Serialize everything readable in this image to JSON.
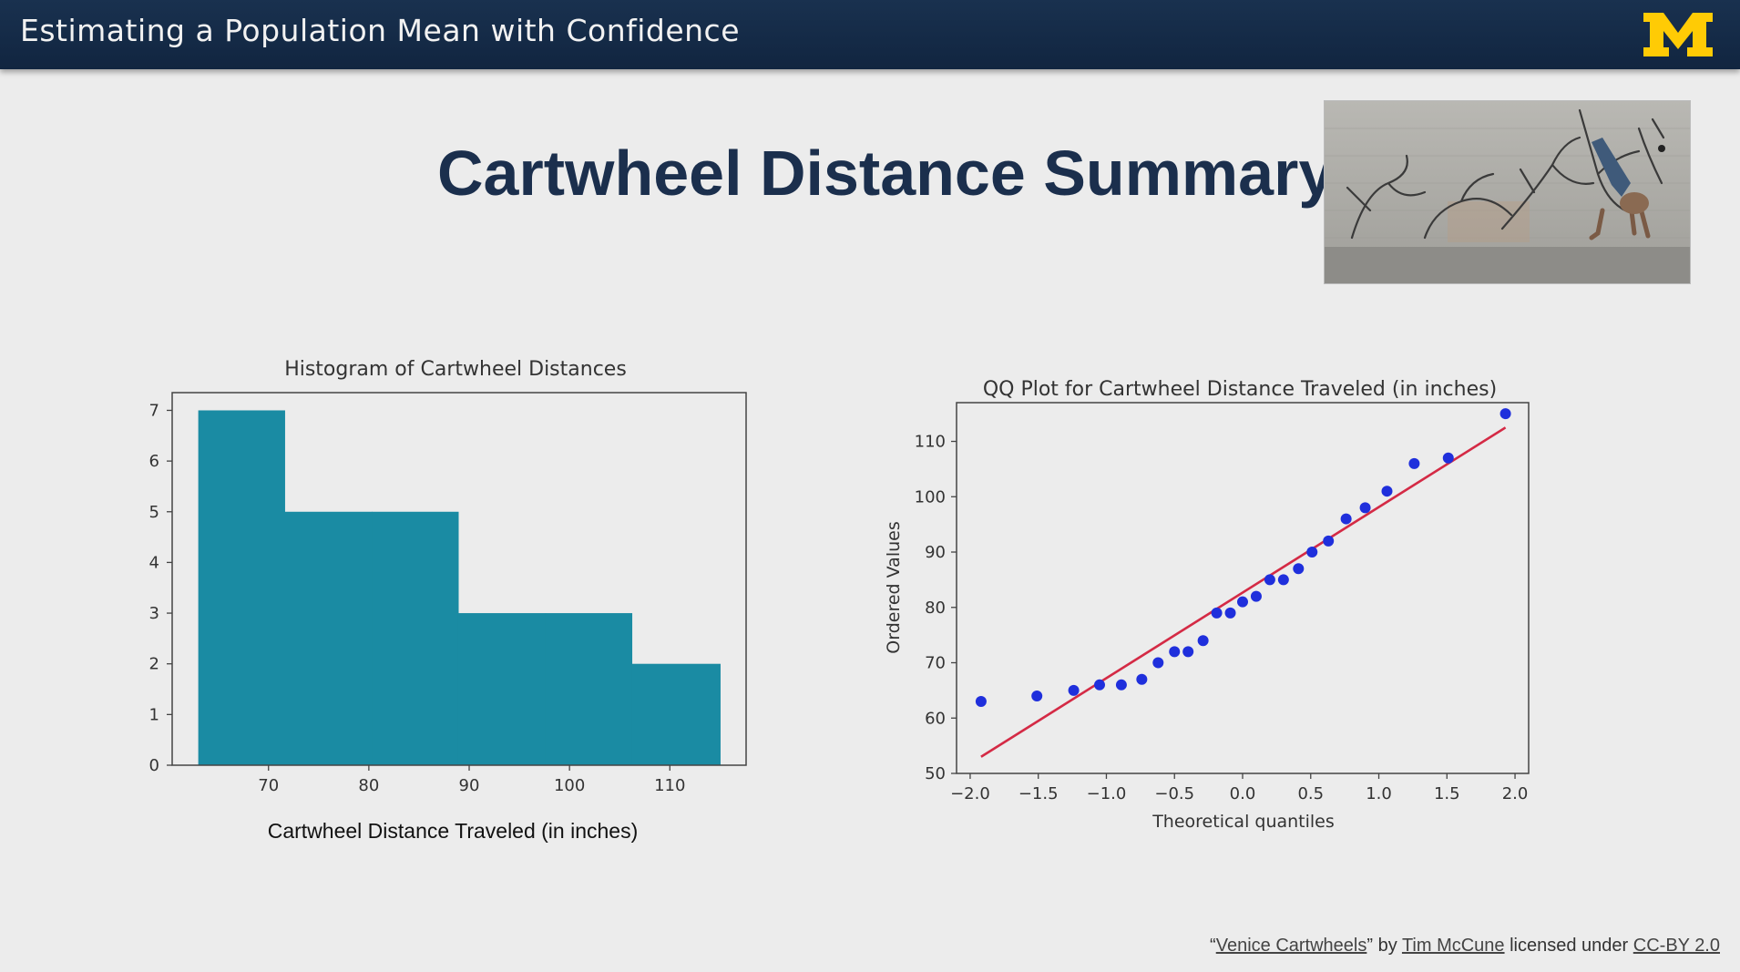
{
  "header": {
    "title": "Estimating a Population Mean with Confidence",
    "logo_letter": "M",
    "logo_color": "#ffcb05"
  },
  "slide": {
    "title": "Cartwheel Distance Summary"
  },
  "credit": {
    "open_quote": "“",
    "work_title": "Venice Cartwheels",
    "close_quote": "”",
    "by": "by",
    "author": "Tim McCune",
    "licensed": "licensed under",
    "license": "CC-BY 2.0"
  },
  "chart_data": [
    {
      "type": "bar",
      "title": "Histogram of Cartwheel Distances",
      "xlabel": "Cartwheel Distance Traveled (in inches)",
      "ylabel": "",
      "bins": [
        {
          "start": 63,
          "end": 71.6,
          "count": 7
        },
        {
          "start": 71.6,
          "end": 80.3,
          "count": 5
        },
        {
          "start": 80.3,
          "end": 88.9,
          "count": 5
        },
        {
          "start": 88.9,
          "end": 97.6,
          "count": 3
        },
        {
          "start": 97.6,
          "end": 106.2,
          "count": 3
        },
        {
          "start": 106.2,
          "end": 115,
          "count": 2
        }
      ],
      "xlim": [
        60.4,
        117.6
      ],
      "ylim": [
        0,
        7.35
      ],
      "xticks": [
        70,
        80,
        90,
        100,
        110
      ],
      "yticks": [
        0,
        1,
        2,
        3,
        4,
        5,
        6,
        7
      ],
      "bar_color": "#1a8ba3",
      "grid": false
    },
    {
      "type": "scatter",
      "title": "QQ Plot for Cartwheel Distance Traveled (in inches)",
      "xlabel": "Theoretical quantiles",
      "ylabel": "Ordered Values",
      "xlim": [
        -2.1,
        2.1
      ],
      "ylim": [
        50,
        117
      ],
      "xticks": [
        -2.0,
        -1.5,
        -1.0,
        -0.5,
        0.0,
        0.5,
        1.0,
        1.5,
        2.0
      ],
      "xtick_labels": [
        "−2.0",
        "−1.5",
        "−1.0",
        "−0.5",
        "0.0",
        "0.5",
        "1.0",
        "1.5",
        "2.0"
      ],
      "yticks": [
        50,
        60,
        70,
        80,
        90,
        100,
        110
      ],
      "points": [
        {
          "x": -1.92,
          "y": 63
        },
        {
          "x": -1.51,
          "y": 64
        },
        {
          "x": -1.24,
          "y": 65
        },
        {
          "x": -1.05,
          "y": 66
        },
        {
          "x": -0.89,
          "y": 66
        },
        {
          "x": -0.74,
          "y": 67
        },
        {
          "x": -0.62,
          "y": 70
        },
        {
          "x": -0.5,
          "y": 72
        },
        {
          "x": -0.4,
          "y": 72
        },
        {
          "x": -0.29,
          "y": 74
        },
        {
          "x": -0.19,
          "y": 79
        },
        {
          "x": -0.09,
          "y": 79
        },
        {
          "x": 0.0,
          "y": 81
        },
        {
          "x": 0.1,
          "y": 82
        },
        {
          "x": 0.2,
          "y": 85
        },
        {
          "x": 0.3,
          "y": 85
        },
        {
          "x": 0.41,
          "y": 87
        },
        {
          "x": 0.51,
          "y": 90
        },
        {
          "x": 0.63,
          "y": 92
        },
        {
          "x": 0.76,
          "y": 96
        },
        {
          "x": 0.9,
          "y": 98
        },
        {
          "x": 1.06,
          "y": 101
        },
        {
          "x": 1.26,
          "y": 106
        },
        {
          "x": 1.51,
          "y": 107
        },
        {
          "x": 1.93,
          "y": 115
        }
      ],
      "fit_line": {
        "x": [
          -1.92,
          1.93
        ],
        "y": [
          53,
          112.5
        ]
      },
      "point_color": "#1f2fdc",
      "line_color": "#d42a45",
      "grid": false
    }
  ]
}
